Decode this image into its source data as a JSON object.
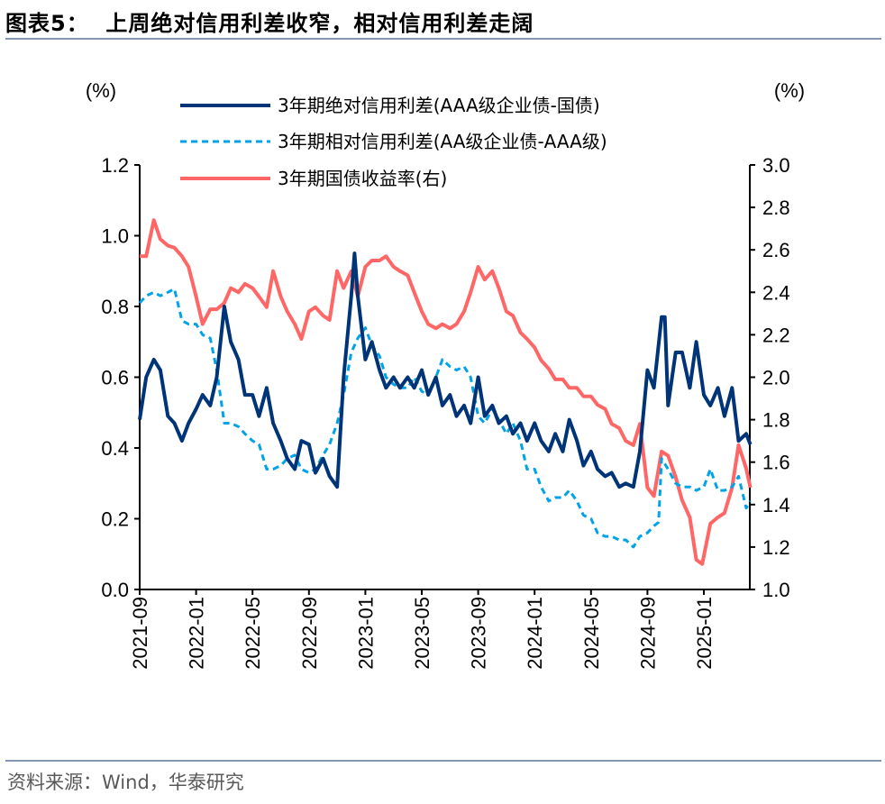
{
  "title": "图表5：  上周绝对信用利差收窄，相对信用利差走阔",
  "source": "资料来源：Wind，华泰研究",
  "chart_data": {
    "type": "line",
    "left_axis": {
      "label": "(%)",
      "range": [
        0.0,
        1.2
      ],
      "ticks": [
        "0.0",
        "0.2",
        "0.4",
        "0.6",
        "0.8",
        "1.0",
        "1.2"
      ]
    },
    "right_axis": {
      "label": "(%)",
      "range": [
        1.0,
        3.0
      ],
      "ticks": [
        "1.0",
        "1.2",
        "1.4",
        "1.6",
        "1.8",
        "2.0",
        "2.2",
        "2.4",
        "2.6",
        "2.8",
        "3.0"
      ]
    },
    "x_ticks": [
      "2021-09",
      "2022-01",
      "2022-05",
      "2022-09",
      "2023-01",
      "2023-05",
      "2023-09",
      "2024-01",
      "2024-05",
      "2024-09",
      "2025-01"
    ],
    "grid": false,
    "legend_position": "top",
    "series": [
      {
        "name": "3年期绝对信用利差(AAA级企业债-国债)",
        "axis": "left",
        "color": "#003478",
        "style": "solid",
        "x": [
          "2021-09-01",
          "2021-09-15",
          "2021-10-01",
          "2021-10-15",
          "2021-11-01",
          "2021-11-15",
          "2021-12-01",
          "2021-12-15",
          "2022-01-01",
          "2022-01-15",
          "2022-02-01",
          "2022-02-15",
          "2022-03-01",
          "2022-03-15",
          "2022-04-01",
          "2022-04-15",
          "2022-05-01",
          "2022-05-15",
          "2022-06-01",
          "2022-06-15",
          "2022-07-01",
          "2022-07-15",
          "2022-08-01",
          "2022-08-15",
          "2022-09-01",
          "2022-09-15",
          "2022-10-01",
          "2022-10-15",
          "2022-11-01",
          "2022-11-15",
          "2022-12-01",
          "2022-12-08",
          "2022-12-15",
          "2023-01-01",
          "2023-01-15",
          "2023-02-01",
          "2023-02-15",
          "2023-03-01",
          "2023-03-15",
          "2023-04-01",
          "2023-04-15",
          "2023-05-01",
          "2023-05-15",
          "2023-06-01",
          "2023-06-15",
          "2023-07-01",
          "2023-07-15",
          "2023-08-01",
          "2023-08-15",
          "2023-09-01",
          "2023-09-15",
          "2023-10-01",
          "2023-10-15",
          "2023-11-01",
          "2023-11-15",
          "2023-12-01",
          "2023-12-15",
          "2024-01-01",
          "2024-01-15",
          "2024-02-01",
          "2024-02-15",
          "2024-03-01",
          "2024-03-15",
          "2024-04-01",
          "2024-04-15",
          "2024-05-01",
          "2024-05-15",
          "2024-06-01",
          "2024-06-15",
          "2024-07-01",
          "2024-07-15",
          "2024-08-01",
          "2024-08-15",
          "2024-09-01",
          "2024-09-15",
          "2024-10-01",
          "2024-10-08",
          "2024-10-15",
          "2024-11-01",
          "2024-11-15",
          "2024-12-01",
          "2024-12-15",
          "2025-01-01",
          "2025-01-15",
          "2025-02-01",
          "2025-02-15",
          "2025-03-01",
          "2025-03-15",
          "2025-04-01",
          "2025-04-10"
        ],
        "values": [
          0.48,
          0.6,
          0.65,
          0.62,
          0.49,
          0.47,
          0.42,
          0.47,
          0.51,
          0.55,
          0.52,
          0.6,
          0.8,
          0.7,
          0.65,
          0.55,
          0.55,
          0.49,
          0.57,
          0.47,
          0.42,
          0.37,
          0.34,
          0.42,
          0.41,
          0.33,
          0.37,
          0.32,
          0.29,
          0.6,
          0.83,
          0.95,
          0.83,
          0.65,
          0.7,
          0.62,
          0.57,
          0.6,
          0.57,
          0.6,
          0.57,
          0.62,
          0.55,
          0.6,
          0.52,
          0.55,
          0.49,
          0.52,
          0.47,
          0.6,
          0.49,
          0.52,
          0.47,
          0.49,
          0.44,
          0.47,
          0.42,
          0.47,
          0.42,
          0.39,
          0.44,
          0.39,
          0.48,
          0.42,
          0.35,
          0.39,
          0.34,
          0.32,
          0.33,
          0.29,
          0.3,
          0.29,
          0.39,
          0.62,
          0.57,
          0.77,
          0.77,
          0.52,
          0.67,
          0.67,
          0.57,
          0.7,
          0.55,
          0.52,
          0.57,
          0.49,
          0.57,
          0.42,
          0.44,
          0.41
        ]
      },
      {
        "name": "3年期相对信用利差(AA级企业债-AAA级)",
        "axis": "left",
        "color": "#00a2e8",
        "style": "dashed",
        "x": [
          "2021-09-01",
          "2021-09-15",
          "2021-10-01",
          "2021-10-15",
          "2021-11-01",
          "2021-11-15",
          "2021-12-01",
          "2021-12-15",
          "2022-01-01",
          "2022-01-15",
          "2022-02-01",
          "2022-02-15",
          "2022-03-01",
          "2022-03-15",
          "2022-04-01",
          "2022-04-15",
          "2022-05-01",
          "2022-05-15",
          "2022-06-01",
          "2022-06-15",
          "2022-07-01",
          "2022-07-15",
          "2022-08-01",
          "2022-08-15",
          "2022-09-01",
          "2022-09-15",
          "2022-10-01",
          "2022-10-15",
          "2022-11-01",
          "2022-11-15",
          "2022-12-01",
          "2022-12-15",
          "2023-01-01",
          "2023-01-15",
          "2023-02-01",
          "2023-02-15",
          "2023-03-01",
          "2023-03-15",
          "2023-04-01",
          "2023-04-15",
          "2023-05-01",
          "2023-05-15",
          "2023-06-01",
          "2023-06-15",
          "2023-07-01",
          "2023-07-15",
          "2023-08-01",
          "2023-08-15",
          "2023-09-01",
          "2023-09-15",
          "2023-10-01",
          "2023-10-15",
          "2023-11-01",
          "2023-11-15",
          "2023-12-01",
          "2023-12-15",
          "2024-01-01",
          "2024-01-15",
          "2024-02-01",
          "2024-02-15",
          "2024-03-01",
          "2024-03-15",
          "2024-04-01",
          "2024-04-15",
          "2024-05-01",
          "2024-05-15",
          "2024-06-01",
          "2024-06-15",
          "2024-07-01",
          "2024-07-15",
          "2024-08-01",
          "2024-08-15",
          "2024-09-01",
          "2024-09-15",
          "2024-09-25",
          "2024-10-01",
          "2024-10-15",
          "2024-11-01",
          "2024-11-15",
          "2024-12-01",
          "2024-12-15",
          "2025-01-01",
          "2025-01-15",
          "2025-02-01",
          "2025-02-15",
          "2025-03-01",
          "2025-03-15",
          "2025-04-01",
          "2025-04-10"
        ],
        "values": [
          0.81,
          0.83,
          0.84,
          0.83,
          0.84,
          0.85,
          0.76,
          0.75,
          0.75,
          0.72,
          0.71,
          0.62,
          0.47,
          0.47,
          0.46,
          0.44,
          0.42,
          0.41,
          0.34,
          0.34,
          0.35,
          0.37,
          0.38,
          0.34,
          0.33,
          0.34,
          0.38,
          0.41,
          0.47,
          0.55,
          0.67,
          0.71,
          0.74,
          0.69,
          0.66,
          0.6,
          0.58,
          0.57,
          0.57,
          0.6,
          0.56,
          0.55,
          0.6,
          0.65,
          0.63,
          0.62,
          0.63,
          0.6,
          0.49,
          0.47,
          0.51,
          0.48,
          0.44,
          0.47,
          0.42,
          0.34,
          0.34,
          0.29,
          0.25,
          0.26,
          0.26,
          0.28,
          0.25,
          0.21,
          0.2,
          0.16,
          0.15,
          0.15,
          0.14,
          0.14,
          0.12,
          0.15,
          0.16,
          0.18,
          0.19,
          0.37,
          0.34,
          0.3,
          0.29,
          0.29,
          0.28,
          0.29,
          0.34,
          0.28,
          0.28,
          0.29,
          0.32,
          0.23,
          0.25
        ]
      },
      {
        "name": "3年期国债收益率(右)",
        "axis": "right",
        "color": "#ff6666",
        "style": "solid",
        "x": [
          "2021-09-01",
          "2021-09-15",
          "2021-10-01",
          "2021-10-15",
          "2021-11-01",
          "2021-11-15",
          "2021-12-01",
          "2021-12-15",
          "2022-01-01",
          "2022-01-15",
          "2022-02-01",
          "2022-02-15",
          "2022-03-01",
          "2022-03-15",
          "2022-04-01",
          "2022-04-15",
          "2022-05-01",
          "2022-05-15",
          "2022-06-01",
          "2022-06-15",
          "2022-07-01",
          "2022-07-15",
          "2022-08-01",
          "2022-08-15",
          "2022-09-01",
          "2022-09-15",
          "2022-10-01",
          "2022-10-15",
          "2022-11-01",
          "2022-11-15",
          "2022-12-01",
          "2022-12-15",
          "2023-01-01",
          "2023-01-15",
          "2023-02-01",
          "2023-02-15",
          "2023-03-01",
          "2023-03-15",
          "2023-04-01",
          "2023-04-15",
          "2023-05-01",
          "2023-05-15",
          "2023-06-01",
          "2023-06-15",
          "2023-07-01",
          "2023-07-15",
          "2023-08-01",
          "2023-08-15",
          "2023-09-01",
          "2023-09-15",
          "2023-10-01",
          "2023-10-15",
          "2023-11-01",
          "2023-11-15",
          "2023-12-01",
          "2023-12-15",
          "2024-01-01",
          "2024-01-15",
          "2024-02-01",
          "2024-02-15",
          "2024-03-01",
          "2024-03-15",
          "2024-04-01",
          "2024-04-15",
          "2024-05-01",
          "2024-05-15",
          "2024-06-01",
          "2024-06-15",
          "2024-07-01",
          "2024-07-15",
          "2024-08-01",
          "2024-08-15",
          "2024-09-01",
          "2024-09-15",
          "2024-10-01",
          "2024-10-15",
          "2024-11-01",
          "2024-11-15",
          "2024-12-01",
          "2024-12-15",
          "2024-12-28",
          "2025-01-15",
          "2025-02-01",
          "2025-02-15",
          "2025-03-01",
          "2025-03-15",
          "2025-04-01",
          "2025-04-10"
        ],
        "values": [
          2.57,
          2.57,
          2.74,
          2.65,
          2.62,
          2.61,
          2.57,
          2.52,
          2.38,
          2.25,
          2.32,
          2.32,
          2.35,
          2.42,
          2.4,
          2.44,
          2.42,
          2.38,
          2.33,
          2.5,
          2.38,
          2.31,
          2.25,
          2.18,
          2.31,
          2.33,
          2.29,
          2.27,
          2.5,
          2.42,
          2.5,
          2.38,
          2.52,
          2.55,
          2.55,
          2.57,
          2.52,
          2.5,
          2.48,
          2.4,
          2.31,
          2.25,
          2.23,
          2.25,
          2.23,
          2.25,
          2.31,
          2.4,
          2.52,
          2.46,
          2.5,
          2.42,
          2.31,
          2.29,
          2.21,
          2.18,
          2.14,
          2.08,
          2.04,
          1.99,
          1.99,
          1.95,
          1.95,
          1.91,
          1.91,
          1.87,
          1.85,
          1.78,
          1.76,
          1.7,
          1.68,
          1.78,
          1.48,
          1.44,
          1.65,
          1.63,
          1.53,
          1.42,
          1.34,
          1.14,
          1.12,
          1.31,
          1.34,
          1.36,
          1.48,
          1.68,
          1.57,
          1.48
        ]
      }
    ]
  }
}
